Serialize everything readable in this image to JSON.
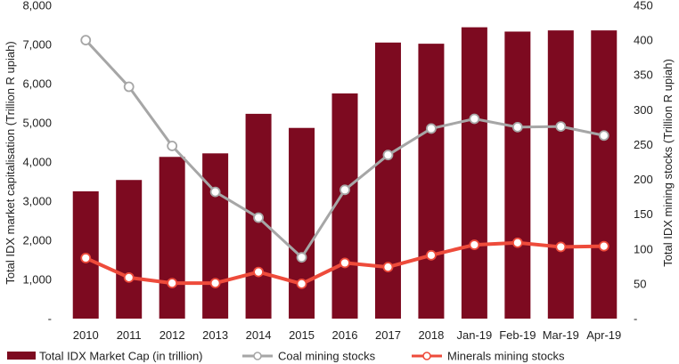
{
  "chart_data": {
    "type": "bar",
    "categories": [
      "2010",
      "2011",
      "2012",
      "2013",
      "2014",
      "2015",
      "2016",
      "2017",
      "2018",
      "Jan-19",
      "Feb-19",
      "Mar-19",
      "Apr-19"
    ],
    "series": [
      {
        "name": "Total IDX Market Cap (in trillion)",
        "type": "bar",
        "axis": "left",
        "color": "#7d0a20",
        "values": [
          3250,
          3540,
          4130,
          4220,
          5230,
          4870,
          5750,
          7050,
          7020,
          7440,
          7330,
          7360,
          7360
        ]
      },
      {
        "name": "Coal mining stocks",
        "type": "line",
        "axis": "right",
        "color": "#a6a6a6",
        "values": [
          400,
          333,
          248,
          182,
          145,
          88,
          185,
          235,
          273,
          287,
          275,
          276,
          263
        ]
      },
      {
        "name": "Minerals mining stocks",
        "type": "line",
        "axis": "right",
        "color": "#ee4b3b",
        "values": [
          87,
          59,
          51,
          51,
          67,
          50,
          80,
          74,
          91,
          106,
          109,
          103,
          104
        ]
      }
    ],
    "ylabel": "Total IDX  market capitalisation (Trillion R upiah)",
    "ylabel_right": "Total IDX  mining stocks (Trillion R upiah)",
    "ylim": [
      0,
      8000
    ],
    "ylim_right": [
      0,
      450
    ],
    "yticks": [
      "-",
      "1,000",
      "2,000",
      "3,000",
      "4,000",
      "5,000",
      "6,000",
      "7,000",
      "8,000"
    ],
    "yticks_right": [
      "-",
      "50",
      "100",
      "150",
      "200",
      "250",
      "300",
      "350",
      "400",
      "450"
    ],
    "grid": false,
    "legend_position": "bottom"
  }
}
